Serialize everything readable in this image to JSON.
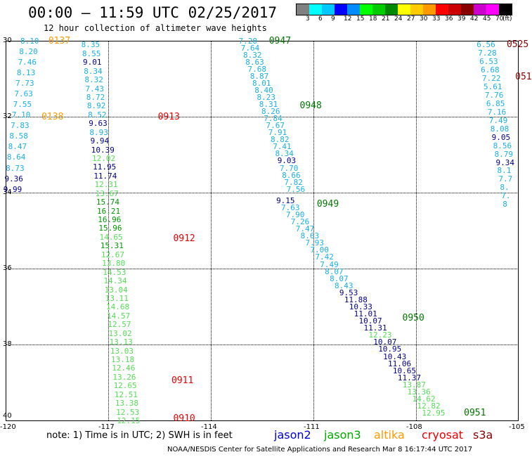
{
  "header": {
    "title": "00:00 – 11:59 UTC 02/25/2017",
    "subtitle": "12 hour collection of altimeter wave heights"
  },
  "legend": {
    "colors": [
      "#808080",
      "#00ffff",
      "#00c8ff",
      "#0000ff",
      "#008cff",
      "#00ff00",
      "#00cc00",
      "#008800",
      "#ffff00",
      "#ffcc00",
      "#ff9900",
      "#ff0000",
      "#cc0000",
      "#880000",
      "#cc00cc",
      "#ff00ff",
      "#000000"
    ],
    "labels": [
      "3",
      "6",
      "9",
      "12",
      "15",
      "18",
      "21",
      "24",
      "27",
      "30",
      "33",
      "36",
      "39",
      "42",
      "45",
      "70",
      "(ft)"
    ]
  },
  "axes": {
    "x_ticks": [
      "-120",
      "-117",
      "-114",
      "-111",
      "-108",
      "-105"
    ],
    "y_ticks": [
      "30",
      "32",
      "34",
      "36",
      "38",
      "40"
    ]
  },
  "chart_data": {
    "type": "scatter",
    "xlim": [
      -120,
      -105
    ],
    "ylim": [
      30,
      40
    ],
    "units": "ft",
    "tracks": [
      {
        "id": "ta",
        "lon_start": -119.28,
        "lat_start": 30.0,
        "lon_end": -119.78,
        "lat_end": 33.9,
        "values": [
          "8.10",
          "8.20",
          "7.46",
          "8.13",
          "7.73",
          "7.63",
          "7.55",
          "7.10",
          "7.83",
          "8.58",
          "8.47",
          "8.64",
          "8.73",
          "9.36",
          "9.99"
        ],
        "colors": [
          "c",
          "c",
          "c",
          "c",
          "c",
          "c",
          "c",
          "c",
          "c",
          "c",
          "c",
          "c",
          "c",
          "n",
          "n"
        ]
      },
      {
        "id": "tb",
        "lon_start": -117.5,
        "lat_start": 30.1,
        "lon_end": -116.46,
        "lat_end": 40.0,
        "values": [
          "8.35",
          "8.55",
          "9.01",
          "8.34",
          "8.32",
          "7.43",
          "8.72",
          "8.92",
          "8.52",
          "9.63",
          "8.93",
          "9.94",
          "10.39",
          "12.02",
          "11.95",
          "11.74",
          "12.31",
          "13.67",
          "15.74",
          "16.21",
          "16.96",
          "15.96",
          "14.65",
          "15.31",
          "12.67",
          "13.80",
          "14.53",
          "14.34",
          "13.04",
          "13.11",
          "14.68",
          "14.57",
          "12.57",
          "13.02",
          "13.13",
          "13.03",
          "13.18",
          "12.46",
          "13.26",
          "12.65",
          "12.51",
          "13.38",
          "12.53",
          "12.15"
        ],
        "colors": [
          "c",
          "c",
          "n",
          "c",
          "c",
          "c",
          "c",
          "c",
          "c",
          "n",
          "c",
          "n",
          "n",
          "l",
          "n",
          "n",
          "l",
          "l",
          "g",
          "g",
          "g",
          "g",
          "l",
          "g",
          "l",
          "l",
          "l",
          "l",
          "l",
          "l",
          "l",
          "l",
          "l",
          "l",
          "l",
          "l",
          "l",
          "l",
          "l",
          "l",
          "l",
          "l",
          "l",
          "l"
        ]
      },
      {
        "id": "tc",
        "lon_start": -112.9,
        "lat_start": 30.0,
        "lon_end": -111.5,
        "lat_end": 33.9,
        "values": [
          "7.20",
          "7.64",
          "8.32",
          "8.63",
          "7.68",
          "8.87",
          "8.01",
          "8.40",
          "8.23",
          "8.31",
          "8.26",
          "7.84",
          "7.67",
          "7.91",
          "8.82",
          "7.41",
          "8.34",
          "9.03",
          "7.70",
          "8.66",
          "7.82",
          "7.56"
        ],
        "colors": [
          "c",
          "c",
          "c",
          "c",
          "c",
          "c",
          "c",
          "c",
          "c",
          "c",
          "c",
          "c",
          "c",
          "c",
          "c",
          "c",
          "c",
          "n",
          "c",
          "c",
          "c",
          "c"
        ]
      },
      {
        "id": "td",
        "lon_start": -111.8,
        "lat_start": 34.2,
        "lon_end": -107.54,
        "lat_end": 39.8,
        "values": [
          "9.15",
          "7.63",
          "7.90",
          "7.26",
          "7.47",
          "8.63",
          "7.93",
          "7.00",
          "7.42",
          "7.49",
          "8.07",
          "8.07",
          "8.43",
          "9.53",
          "11.88",
          "10.33",
          "11.01",
          "10.07",
          "11.31",
          "12.23",
          "10.07",
          "10.95",
          "10.43",
          "11.06",
          "10.65",
          "11.37",
          "13.87",
          "13.36",
          "14.62",
          "12.82",
          "12.95"
        ],
        "colors": [
          "n",
          "c",
          "c",
          "c",
          "c",
          "c",
          "c",
          "c",
          "c",
          "c",
          "c",
          "c",
          "c",
          "n",
          "n",
          "n",
          "n",
          "n",
          "n",
          "l",
          "n",
          "n",
          "n",
          "n",
          "n",
          "n",
          "l",
          "l",
          "l",
          "l",
          "l"
        ]
      },
      {
        "id": "te",
        "lon_start": -105.94,
        "lat_start": 30.1,
        "lon_end": -105.18,
        "lat_end": 34.3,
        "values": [
          "6.56",
          "7.28",
          "6.53",
          "6.68",
          "7.22",
          "5.61",
          "7.76",
          "6.85",
          "7.16",
          "7.49",
          "8.08",
          "9.05",
          "8.56",
          "8.79",
          "9.34",
          "8.1",
          "7.7",
          "8.",
          "7.",
          "8"
        ],
        "colors": [
          "c",
          "c",
          "c",
          "c",
          "c",
          "c",
          "c",
          "c",
          "c",
          "c",
          "c",
          "n",
          "c",
          "c",
          "n",
          "c",
          "c",
          "c",
          "c",
          "c"
        ]
      }
    ],
    "time_labels": [
      {
        "text": "0137",
        "lon": -118.75,
        "lat": 30.0,
        "color": "orange"
      },
      {
        "text": "0138",
        "lon": -118.95,
        "lat": 32.0,
        "color": "orange"
      },
      {
        "text": "0913",
        "lon": -115.55,
        "lat": 32.0,
        "color": "red"
      },
      {
        "text": "0912",
        "lon": -115.1,
        "lat": 35.2,
        "color": "red"
      },
      {
        "text": "0911",
        "lon": -115.15,
        "lat": 38.95,
        "color": "red"
      },
      {
        "text": "0910",
        "lon": -115.1,
        "lat": 39.95,
        "color": "red"
      },
      {
        "text": "0947",
        "lon": -112.3,
        "lat": 30.0,
        "color": "green"
      },
      {
        "text": "0948",
        "lon": -111.4,
        "lat": 31.7,
        "color": "green"
      },
      {
        "text": "0949",
        "lon": -110.9,
        "lat": 34.3,
        "color": "green"
      },
      {
        "text": "0950",
        "lon": -108.4,
        "lat": 37.3,
        "color": "green"
      },
      {
        "text": "0951",
        "lon": -106.6,
        "lat": 39.8,
        "color": "green"
      },
      {
        "text": "0525",
        "lon": -105.35,
        "lat": 30.1,
        "color": "maroon"
      },
      {
        "text": "051",
        "lon": -105.1,
        "lat": 30.95,
        "color": "maroon"
      }
    ],
    "palette": {
      "c": "#1ab0e8",
      "n": "#00008b",
      "l": "#55dd55",
      "g": "#009900",
      "orange": "#ff9900",
      "red": "#ee0000",
      "green": "#007700",
      "maroon": "#880000"
    }
  },
  "footer": {
    "note": "note: 1) Time is in UTC; 2) SWH is in feet",
    "satellites": [
      {
        "name": "jason2",
        "color": "#0000dd"
      },
      {
        "name": "jason3",
        "color": "#00aa00"
      },
      {
        "name": "altika",
        "color": "#ff9900"
      },
      {
        "name": "cryosat",
        "color": "#ee0000"
      },
      {
        "name": "s3a",
        "color": "#880000"
      }
    ],
    "credit": "NOAA/NESDIS Center for Satellite Applications and Research     Mar  8 16:17:44 UTC 2017"
  }
}
